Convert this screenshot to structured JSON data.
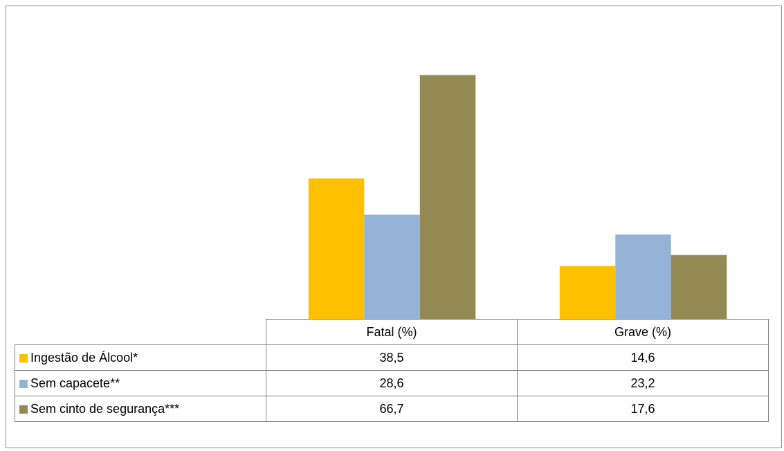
{
  "chart_data": {
    "type": "bar",
    "categories": [
      "Fatal (%)",
      "Grave (%)"
    ],
    "series": [
      {
        "name": "Ingestão de Álcool*",
        "values": [
          38.5,
          14.6
        ],
        "display": [
          "38,5",
          "14,6"
        ],
        "color": "#FFC000"
      },
      {
        "name": "Sem capacete**",
        "values": [
          28.6,
          23.2
        ],
        "display": [
          "28,6",
          "23,2"
        ],
        "color": "#95B3D7"
      },
      {
        "name": "Sem cinto de segurança***",
        "values": [
          66.7,
          17.6
        ],
        "display": [
          "66,7",
          "17,6"
        ],
        "color": "#938953"
      }
    ],
    "title": "",
    "xlabel": "",
    "ylabel": "",
    "ylim": [
      0,
      70
    ],
    "grid": false,
    "legend": "data-table"
  }
}
